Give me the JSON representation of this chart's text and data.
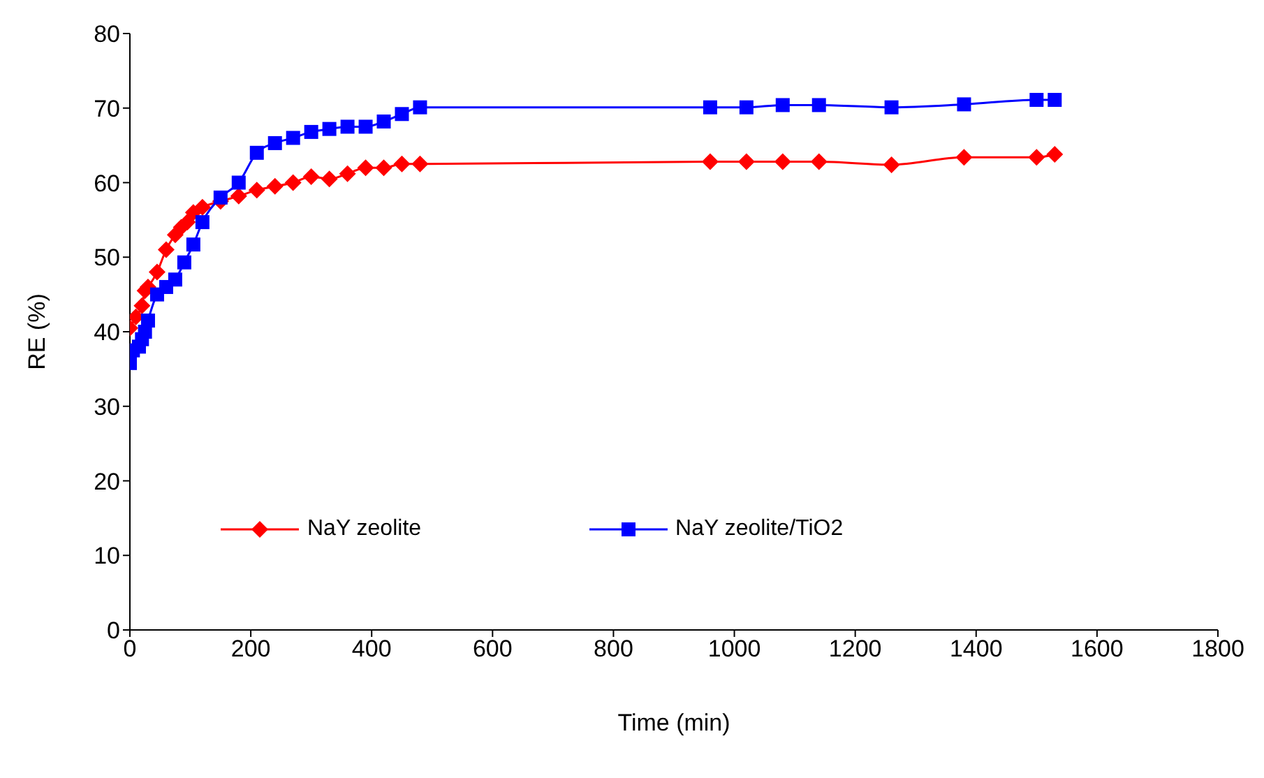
{
  "chart_data": {
    "type": "line",
    "xlabel": "Time (min)",
    "ylabel": "RE (%)",
    "xlim": [
      0,
      1800
    ],
    "xticks": [
      0,
      200,
      400,
      600,
      800,
      1000,
      1200,
      1400,
      1600,
      1800
    ],
    "ylim": [
      0,
      80
    ],
    "yticks": [
      0,
      10,
      20,
      30,
      40,
      50,
      60,
      70,
      80
    ],
    "grid": false,
    "legend": "center",
    "line_style": "solid",
    "series": [
      {
        "name": "NaY zeolite",
        "color": "#ff0000",
        "marker": "diamond",
        "x": [
          0,
          10,
          20,
          25,
          30,
          45,
          60,
          75,
          85,
          95,
          105,
          120,
          150,
          180,
          210,
          240,
          270,
          300,
          330,
          360,
          390,
          420,
          450,
          480,
          960,
          1020,
          1080,
          1140,
          1260,
          1380,
          1500,
          1530
        ],
        "values": [
          40.5,
          42,
          43.5,
          45.5,
          46,
          48,
          51,
          53,
          54,
          54.7,
          56,
          56.7,
          57.5,
          58.2,
          59,
          59.5,
          60,
          60.8,
          60.5,
          61.2,
          62,
          62,
          62.5,
          62.5,
          62.8,
          62.8,
          62.8,
          62.8,
          62.4,
          63.4,
          63.4,
          63.8
        ]
      },
      {
        "name": "NaY zeolite/TiO2",
        "color": "#0000ff",
        "marker": "square",
        "x": [
          0,
          5,
          15,
          20,
          25,
          30,
          45,
          60,
          75,
          90,
          105,
          120,
          150,
          180,
          210,
          240,
          270,
          300,
          330,
          360,
          390,
          420,
          450,
          480,
          960,
          1020,
          1080,
          1140,
          1260,
          1380,
          1500,
          1530
        ],
        "values": [
          35.8,
          37.5,
          38,
          39,
          40,
          41.5,
          45,
          46,
          47,
          49.3,
          51.7,
          54.7,
          58,
          60,
          64,
          65.3,
          66,
          66.8,
          67.2,
          67.5,
          67.5,
          68.2,
          69.2,
          70.1,
          70.1,
          70.1,
          70.4,
          70.4,
          70.1,
          70.5,
          71.1,
          71.1
        ]
      }
    ]
  }
}
